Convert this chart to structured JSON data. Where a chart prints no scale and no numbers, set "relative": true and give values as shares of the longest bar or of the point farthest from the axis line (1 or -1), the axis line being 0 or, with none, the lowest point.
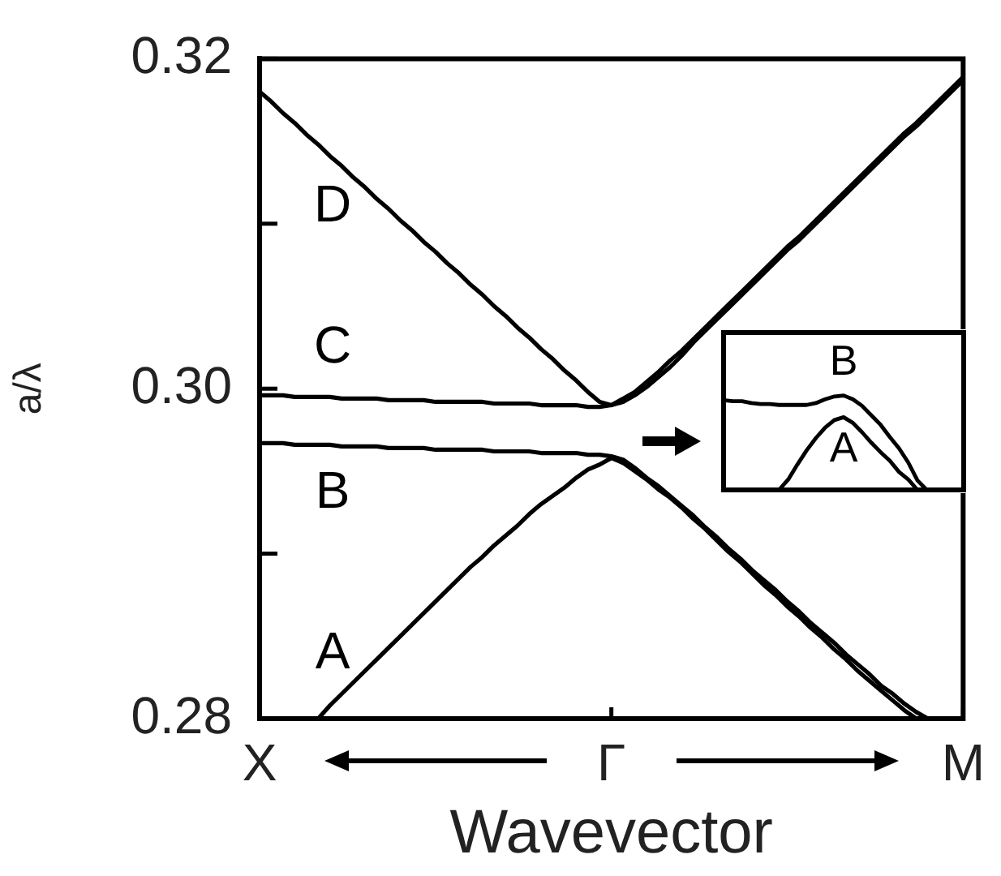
{
  "chart_data": [
    {
      "type": "line",
      "xlabel": "Wavevector",
      "ylabel": "a/λ",
      "categories": [
        "X",
        null,
        null,
        null,
        null,
        null,
        null,
        null,
        null,
        null,
        null,
        null,
        null,
        null,
        null,
        null,
        null,
        null,
        null,
        null,
        null,
        null,
        null,
        null,
        null,
        null,
        null,
        null,
        null,
        null,
        "Γ",
        null,
        null,
        null,
        null,
        null,
        null,
        null,
        null,
        null,
        null,
        null,
        null,
        null,
        null,
        null,
        null,
        null,
        null,
        null,
        null,
        null,
        null,
        null,
        null,
        null,
        null,
        null,
        null,
        null,
        "M"
      ],
      "ylim": [
        0.28,
        0.32
      ],
      "yticks": [
        0.28,
        {
          "value": 0.29,
          "label": null
        },
        {
          "value": 0.3,
          "label": "0.30"
        },
        {
          "value": 0.31,
          "label": null
        },
        0.32
      ],
      "legend": false,
      "marker": "none",
      "line_style": "solid",
      "series": [
        {
          "name": "D",
          "color": "#000000",
          "values": [
            0.318,
            0.3174,
            0.3167,
            0.3161,
            0.3154,
            0.3148,
            0.3141,
            0.3135,
            0.3128,
            0.3122,
            0.3115,
            0.3109,
            0.3102,
            0.3096,
            0.3089,
            0.3083,
            0.3076,
            0.307,
            0.3063,
            0.3057,
            0.305,
            0.3044,
            0.3037,
            0.3031,
            0.3024,
            0.3018,
            0.3011,
            0.3005,
            0.2998,
            0.2992,
            0.299,
            0.2994,
            0.2998,
            0.3004,
            0.301,
            0.3017,
            0.3023,
            0.303,
            0.3037,
            0.3044,
            0.3051,
            0.3058,
            0.3065,
            0.3072,
            0.3079,
            0.3086,
            0.3092,
            0.3099,
            0.3106,
            0.3113,
            0.312,
            0.3127,
            0.3134,
            0.3141,
            0.3148,
            0.3155,
            0.3161,
            0.3168,
            0.3175,
            0.3182,
            0.3189
          ]
        },
        {
          "name": "C",
          "color": "#000000",
          "values": [
            0.2996,
            0.2996,
            0.2996,
            0.2995,
            0.2995,
            0.2995,
            0.2995,
            0.2994,
            0.2994,
            0.2994,
            0.2994,
            0.2993,
            0.2993,
            0.2993,
            0.2993,
            0.2992,
            0.2992,
            0.2992,
            0.2992,
            0.2992,
            0.2991,
            0.2991,
            0.2991,
            0.2991,
            0.299,
            0.299,
            0.299,
            0.299,
            0.2989,
            0.2989,
            0.299,
            0.2992,
            0.2996,
            0.3001,
            0.3007,
            0.3013,
            0.302,
            0.3028,
            0.3035,
            0.3042,
            0.3049,
            0.3056,
            0.3063,
            0.307,
            0.3077,
            0.3084,
            0.309,
            0.3097,
            0.3104,
            0.3111,
            0.3118,
            0.3125,
            0.3132,
            0.3139,
            0.3146,
            0.3153,
            0.3159,
            0.3166,
            0.3173,
            0.318,
            0.3187
          ]
        },
        {
          "name": "B",
          "color": "#000000",
          "values": [
            0.2967,
            0.2967,
            0.2967,
            0.2966,
            0.2966,
            0.2966,
            0.2966,
            0.2965,
            0.2965,
            0.2965,
            0.2965,
            0.2964,
            0.2964,
            0.2964,
            0.2964,
            0.2963,
            0.2963,
            0.2963,
            0.2963,
            0.2963,
            0.2962,
            0.2962,
            0.2962,
            0.2962,
            0.2961,
            0.2961,
            0.2961,
            0.2961,
            0.296,
            0.296,
            0.2959,
            0.2957,
            0.2952,
            0.2946,
            0.2941,
            0.2935,
            0.2929,
            0.2923,
            0.2916,
            0.291,
            0.2903,
            0.2897,
            0.289,
            0.2884,
            0.2878,
            0.2871,
            0.2865,
            0.2858,
            0.2852,
            0.2846,
            0.2839,
            0.2833,
            0.2827,
            0.282,
            0.2815,
            0.2809,
            0.2804,
            0.28,
            null,
            null,
            null
          ]
        },
        {
          "name": "A",
          "color": "#000000",
          "values": [
            null,
            null,
            null,
            null,
            null,
            0.28,
            0.2808,
            0.2815,
            0.2822,
            0.2829,
            0.2836,
            0.2843,
            0.285,
            0.2857,
            0.2864,
            0.2871,
            0.2878,
            0.2885,
            0.2892,
            0.2898,
            0.2905,
            0.2911,
            0.2917,
            0.2924,
            0.293,
            0.2935,
            0.294,
            0.2946,
            0.2951,
            0.2954,
            0.2958,
            0.2955,
            0.295,
            0.2945,
            0.2939,
            0.2934,
            0.2928,
            0.2921,
            0.2915,
            0.2908,
            0.2901,
            0.2895,
            0.2888,
            0.2881,
            0.2875,
            0.2868,
            0.2862,
            0.2855,
            0.2849,
            0.2842,
            0.2836,
            0.2829,
            0.2823,
            0.2817,
            0.2811,
            0.2805,
            0.28,
            null,
            null,
            null,
            null
          ]
        }
      ]
    },
    {
      "type": "line",
      "relative": true,
      "categories": [
        null,
        null,
        null,
        null,
        null,
        null,
        null,
        null,
        null,
        null,
        null,
        null,
        null,
        null,
        null,
        null,
        null,
        null,
        null,
        null,
        null,
        null,
        null,
        null,
        null,
        null,
        null
      ],
      "series": [
        {
          "name": "B",
          "color": "#000000",
          "values": [
            0.95,
            0.94,
            0.94,
            0.92,
            0.91,
            0.91,
            0.9,
            0.9,
            0.9,
            0.9,
            0.92,
            0.96,
            0.99,
            1,
            0.96,
            0.89,
            0.79,
            0.69,
            0.56,
            0.44,
            0.29,
            0.1,
            0,
            null,
            null,
            null,
            null
          ]
        },
        {
          "name": "A",
          "color": "#000000",
          "values": [
            null,
            null,
            null,
            null,
            null,
            null,
            0,
            0.11,
            0.27,
            0.42,
            0.55,
            0.66,
            0.74,
            0.77,
            0.71,
            0.61,
            0.5,
            0.4,
            0.31,
            0.19,
            0.11,
            0,
            null,
            null,
            null,
            null,
            null
          ]
        }
      ]
    }
  ]
}
